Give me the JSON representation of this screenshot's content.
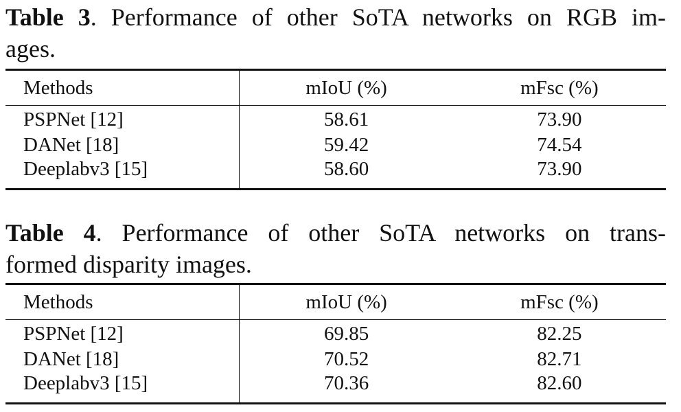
{
  "tables": [
    {
      "label": "Table 3",
      "caption_line1": ".  Performance of other SoTA networks on RGB im-",
      "caption_line2": "ages.",
      "headers": [
        "Methods",
        "mIoU (%)",
        "mFsc (%)"
      ],
      "rows": [
        {
          "method": "PSPNet [12]",
          "miou": "58.61",
          "mfsc": "73.90"
        },
        {
          "method": "DANet [18]",
          "miou": "59.42",
          "mfsc": "74.54"
        },
        {
          "method": "Deeplabv3 [15]",
          "miou": "58.60",
          "mfsc": "73.90"
        }
      ]
    },
    {
      "label": "Table 4",
      "caption_line1": ".   Performance of other SoTA networks on trans-",
      "caption_line2": "formed disparity images.",
      "headers": [
        "Methods",
        "mIoU (%)",
        "mFsc (%)"
      ],
      "rows": [
        {
          "method": "PSPNet [12]",
          "miou": "69.85",
          "mfsc": "82.25"
        },
        {
          "method": "DANet [18]",
          "miou": "70.52",
          "mfsc": "82.71"
        },
        {
          "method": "Deeplabv3 [15]",
          "miou": "70.36",
          "mfsc": "82.60"
        }
      ]
    }
  ]
}
